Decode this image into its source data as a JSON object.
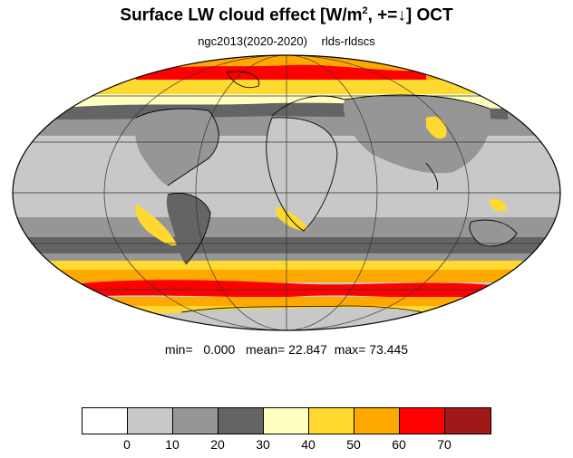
{
  "title": {
    "main": "Surface LW cloud effect [W/m",
    "sup": "2",
    "rest": ", +=↓]  OCT"
  },
  "subtitle": {
    "left": "ngc2013(2020-2020)",
    "right": "rlds-rldscs"
  },
  "stats": {
    "min_label": "min=",
    "min": "0.000",
    "mean_label": "mean=",
    "mean": "22.847",
    "max_label": "max=",
    "max": "73.445"
  },
  "colorbar": {
    "colors": [
      "#ffffff",
      "#c8c8c8",
      "#969696",
      "#646464",
      "#ffffc0",
      "#ffd830",
      "#ffa800",
      "#ff0000",
      "#a01818"
    ],
    "ticks": [
      "0",
      "10",
      "20",
      "30",
      "40",
      "50",
      "60",
      "70"
    ]
  },
  "colors": {
    "ocean_base": "#c8c8c8",
    "mid": "#969696",
    "dark": "#646464",
    "coast": "#000000"
  }
}
